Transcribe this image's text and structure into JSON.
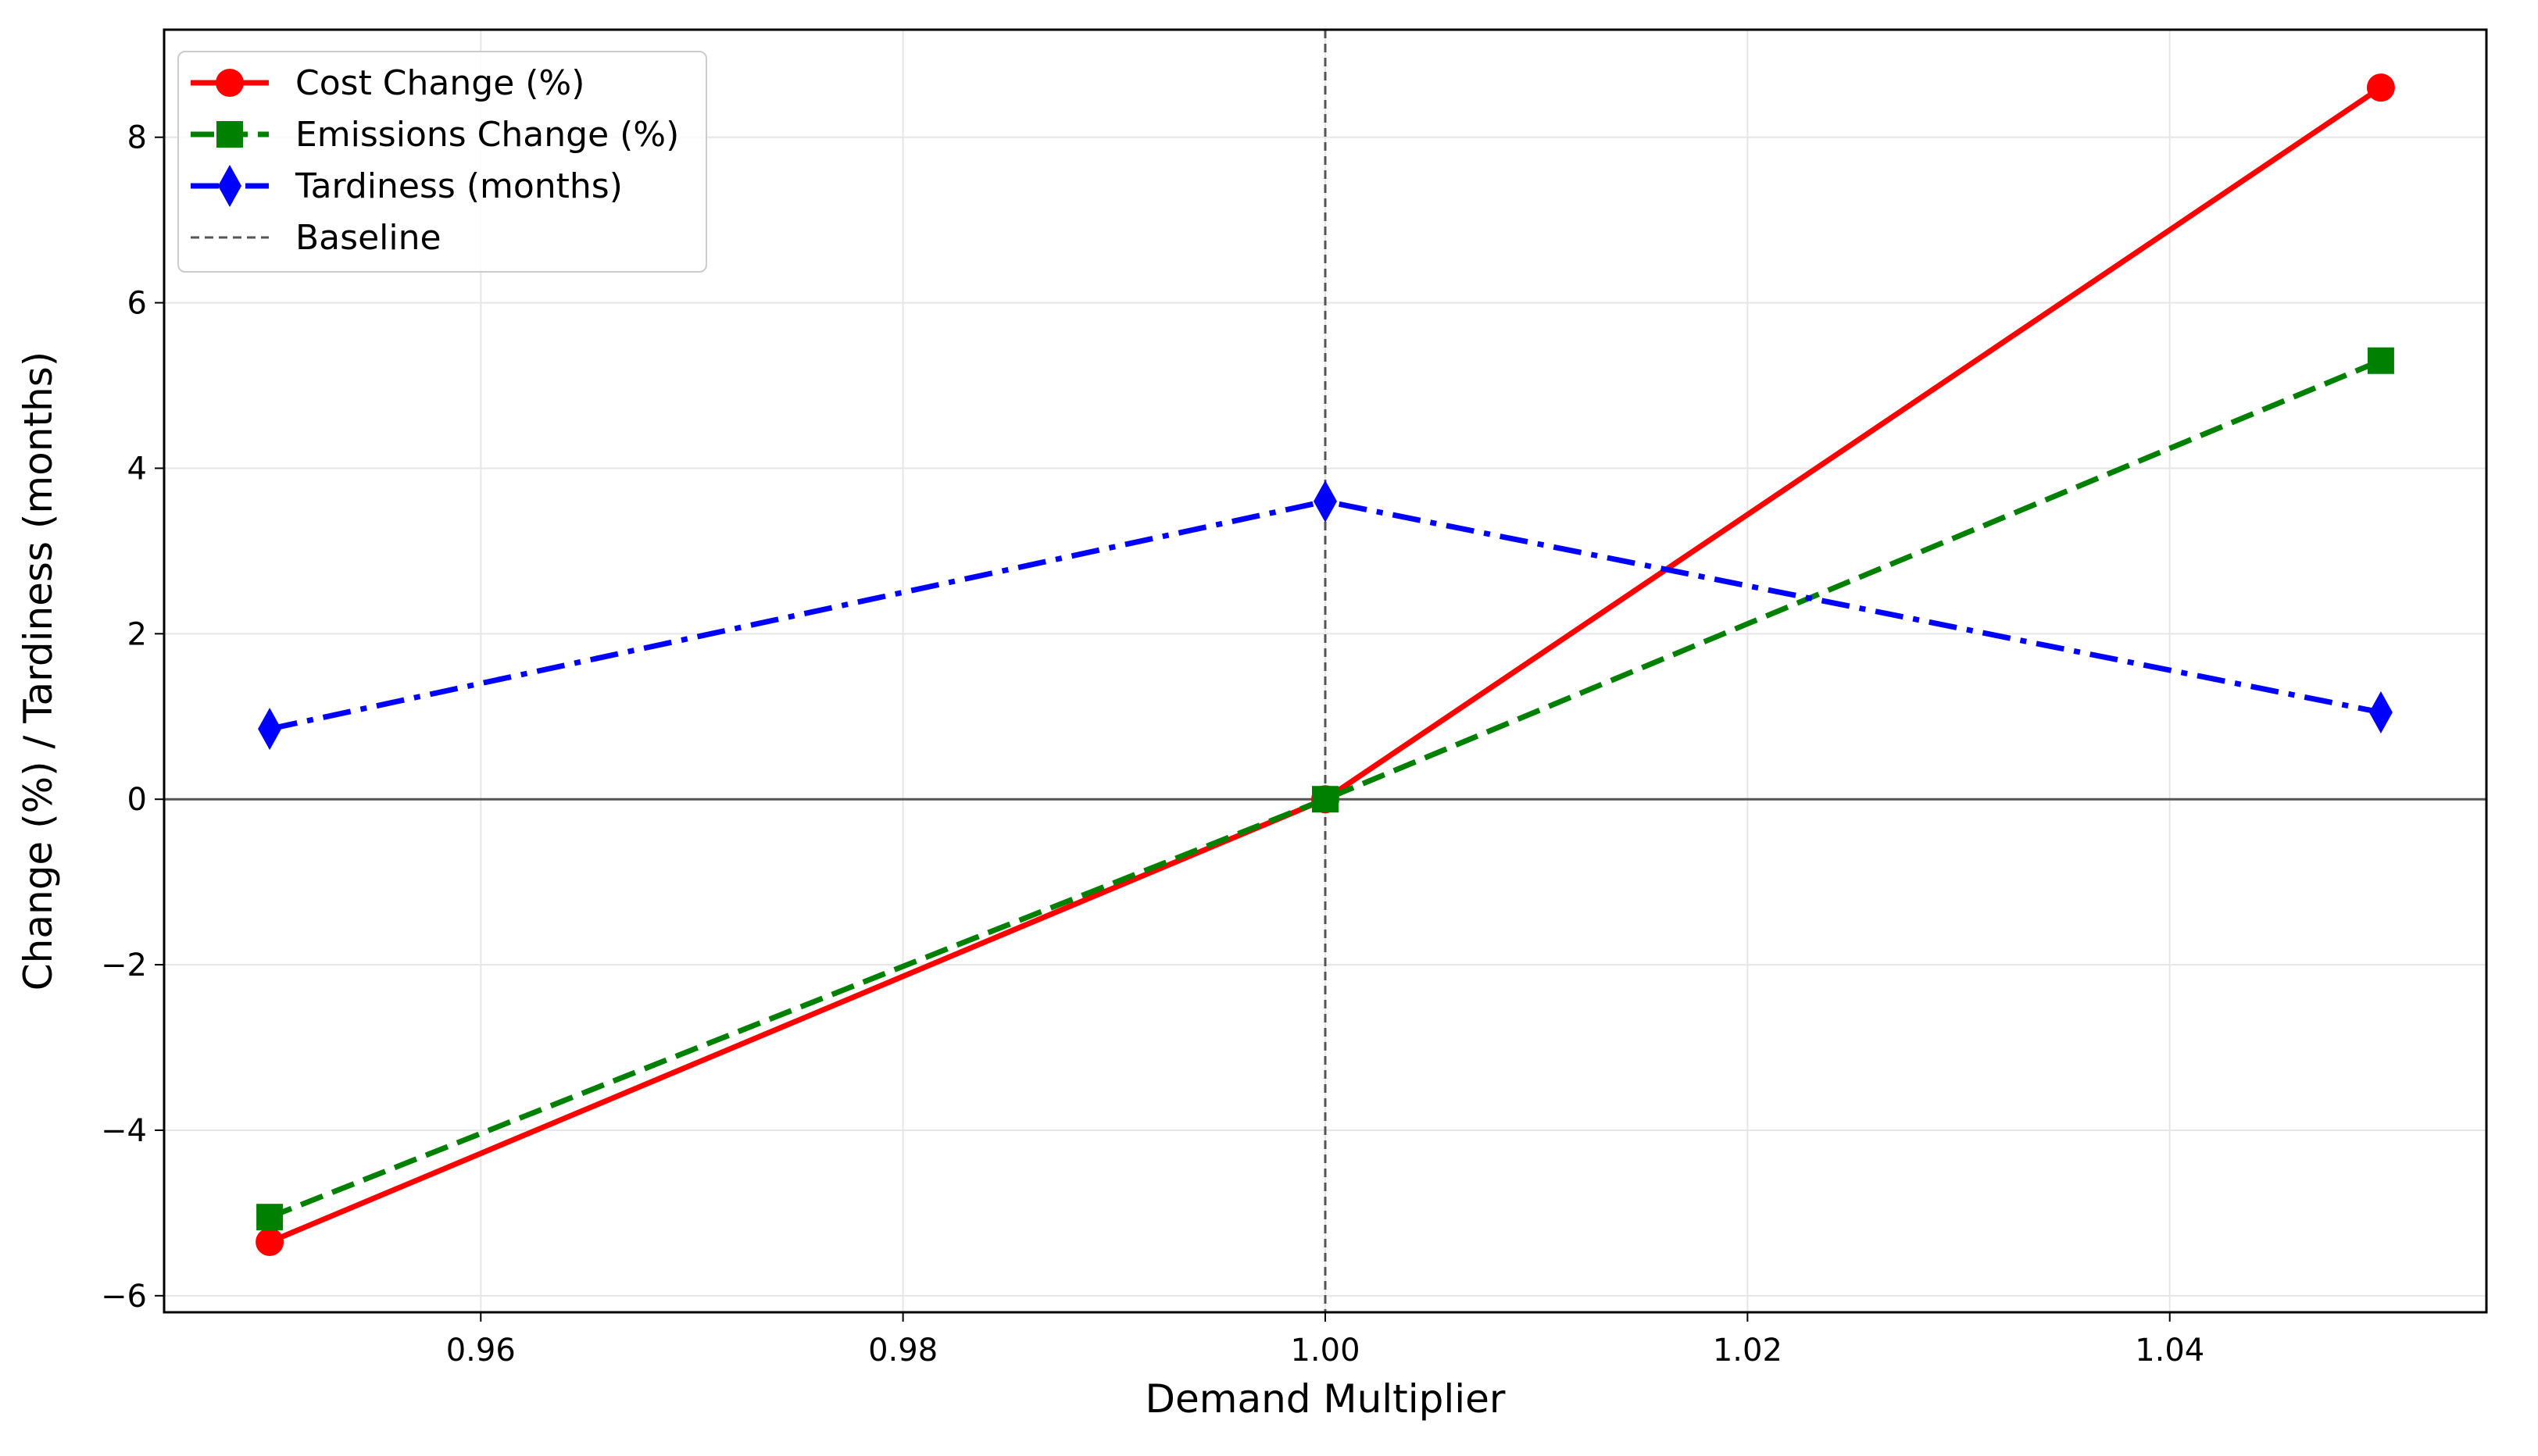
{
  "chart_data": {
    "type": "line",
    "title": "",
    "xlabel": "Demand Multiplier",
    "ylabel": "Change (%) / Tardiness (months)",
    "xlim": [
      0.945,
      1.055
    ],
    "ylim": [
      -6.2,
      9.3
    ],
    "x_ticks": [
      0.96,
      0.98,
      1.0,
      1.02,
      1.04
    ],
    "x_tick_labels": [
      "0.96",
      "0.98",
      "1.00",
      "1.02",
      "1.04"
    ],
    "y_ticks": [
      -6,
      -4,
      -2,
      0,
      2,
      4,
      6,
      8
    ],
    "y_tick_labels": [
      "−6",
      "−4",
      "−2",
      "0",
      "2",
      "4",
      "6",
      "8"
    ],
    "grid": true,
    "legend_position": "top-left",
    "x": [
      0.95,
      1.0,
      1.05
    ],
    "series": [
      {
        "name": "Cost Change (%)",
        "values": [
          -5.35,
          0.0,
          8.6
        ],
        "color": "#ff0000",
        "linestyle": "solid",
        "marker": "circle"
      },
      {
        "name": "Emissions Change (%)",
        "values": [
          -5.05,
          0.0,
          5.3
        ],
        "color": "#008000",
        "linestyle": "dashed",
        "marker": "square"
      },
      {
        "name": "Tardiness (months)",
        "values": [
          0.85,
          3.6,
          1.05
        ],
        "color": "#0000ff",
        "linestyle": "dashdot",
        "marker": "diamond"
      }
    ],
    "reference_lines": [
      {
        "name": "Baseline",
        "orientation": "vertical",
        "value": 1.0,
        "color": "#555555",
        "linestyle": "dashed"
      },
      {
        "orientation": "horizontal",
        "value": 0,
        "color": "#555555",
        "linestyle": "solid"
      }
    ]
  }
}
